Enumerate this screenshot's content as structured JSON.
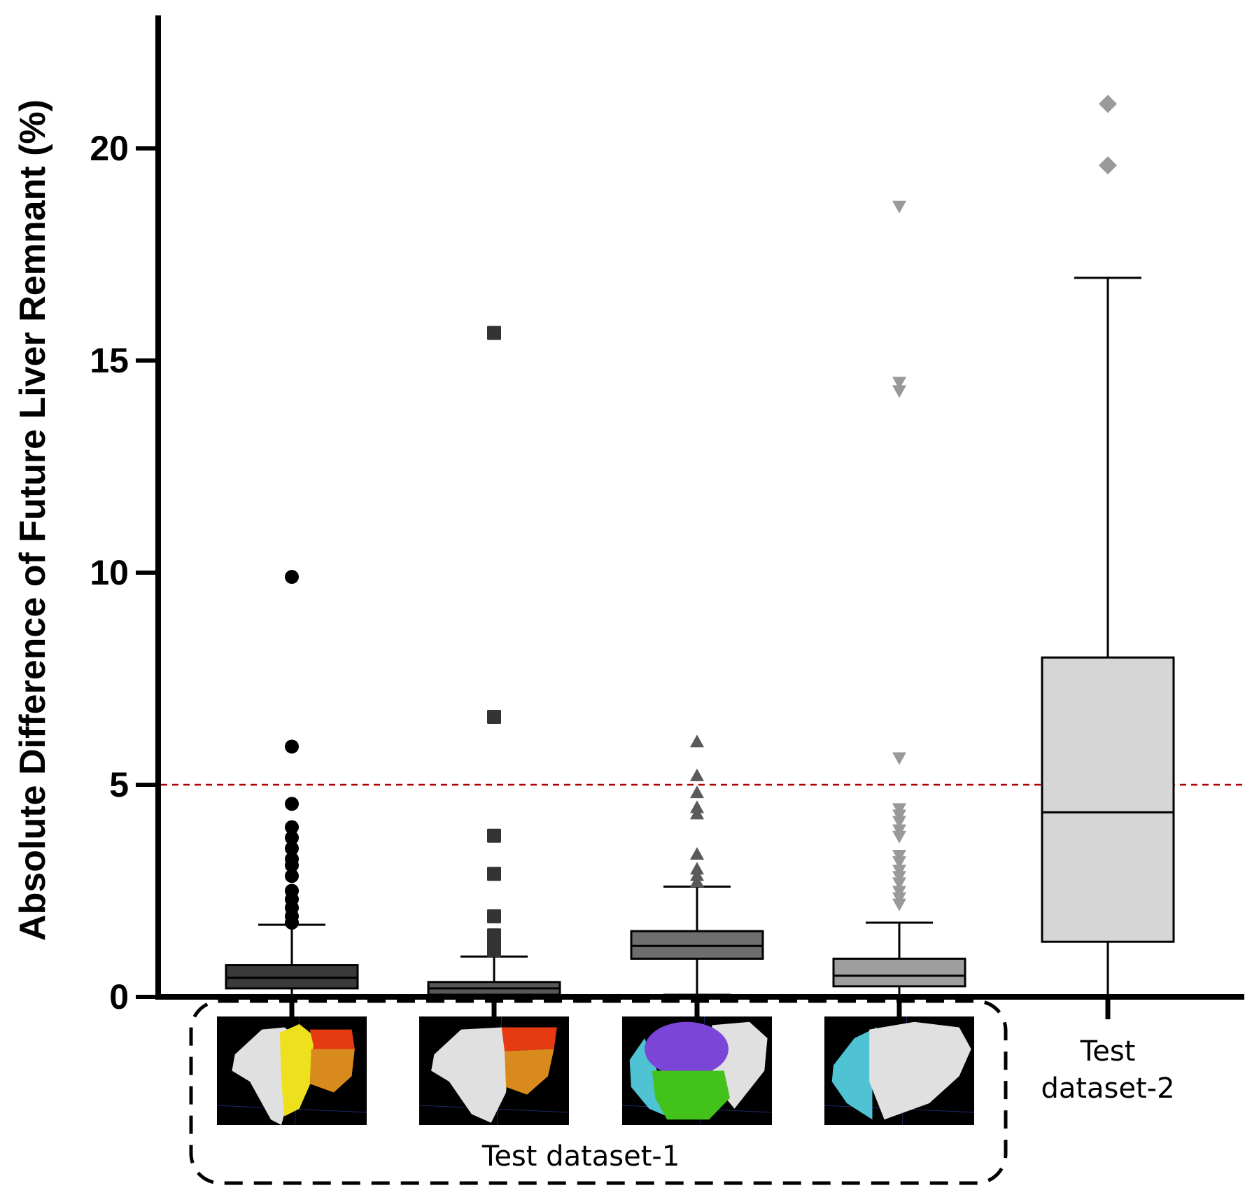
{
  "chart_data": {
    "type": "box",
    "ylabel": "Absolute Difference of Future Liver Remnant (%)",
    "xlabel": "",
    "ylim": [
      0,
      23
    ],
    "yticks": [
      0,
      5,
      10,
      15,
      20
    ],
    "grid": false,
    "reference_line": {
      "y": 5,
      "color": "#b00000",
      "style": "dashed"
    },
    "group_labels": {
      "dataset1": "Test dataset-1",
      "dataset2_line1": "Test",
      "dataset2_line2": "dataset-2"
    },
    "series": [
      {
        "whisker_low": 0,
        "q1": 0.2,
        "median": 0.45,
        "q3": 0.75,
        "whisker_high": 1.7,
        "outliers": [
          1.75,
          1.9,
          2.1,
          2.3,
          2.5,
          2.85,
          3.1,
          3.25,
          3.5,
          3.75,
          4.0,
          4.55,
          5.9,
          9.9
        ],
        "marker": "circle",
        "fill": "#3a3a3a",
        "outlier_color": "#000000",
        "inset_colors": [
          "#e0e0e0",
          "#ede01c",
          "#e53a12",
          "#d98a1c"
        ]
      },
      {
        "whisker_low": 0,
        "q1": 0.05,
        "median": 0.2,
        "q3": 0.35,
        "whisker_high": 0.95,
        "outliers": [
          1.1,
          1.25,
          1.35,
          1.45,
          1.9,
          2.9,
          3.8,
          6.6,
          15.65
        ],
        "marker": "square",
        "fill": "#575757",
        "outlier_color": "#333333",
        "inset_colors": [
          "#e0e0e0",
          "#e53a12",
          "#d98a1c"
        ]
      },
      {
        "whisker_low": 0.05,
        "q1": 0.9,
        "median": 1.2,
        "q3": 1.55,
        "whisker_high": 2.6,
        "outliers": [
          2.7,
          2.85,
          3.0,
          3.35,
          4.3,
          4.45,
          4.8,
          5.2,
          6.0
        ],
        "marker": "triangle",
        "fill": "#6e6e6e",
        "outlier_color": "#5a5a5a",
        "inset_colors": [
          "#7b45d8",
          "#42c21a",
          "#4fc3d3",
          "#e0e0e0"
        ]
      },
      {
        "whisker_low": 0,
        "q1": 0.25,
        "median": 0.5,
        "q3": 0.9,
        "whisker_high": 1.75,
        "outliers": [
          2.2,
          2.35,
          2.5,
          2.7,
          2.85,
          3.0,
          3.2,
          3.35,
          3.8,
          3.95,
          4.15,
          4.3,
          4.45,
          5.65,
          14.3,
          14.5,
          18.65
        ],
        "marker": "triangle-down",
        "fill": "#9e9e9e",
        "outlier_color": "#999999",
        "inset_colors": [
          "#4fc3d3",
          "#e0e0e0"
        ]
      },
      {
        "whisker_low": 0,
        "q1": 1.3,
        "median": 4.35,
        "q3": 8.0,
        "whisker_high": 16.95,
        "outliers": [
          19.6,
          21.05
        ],
        "marker": "diamond",
        "fill": "#d6d6d6",
        "outlier_color": "#9a9a9a",
        "inset_colors": []
      }
    ]
  }
}
